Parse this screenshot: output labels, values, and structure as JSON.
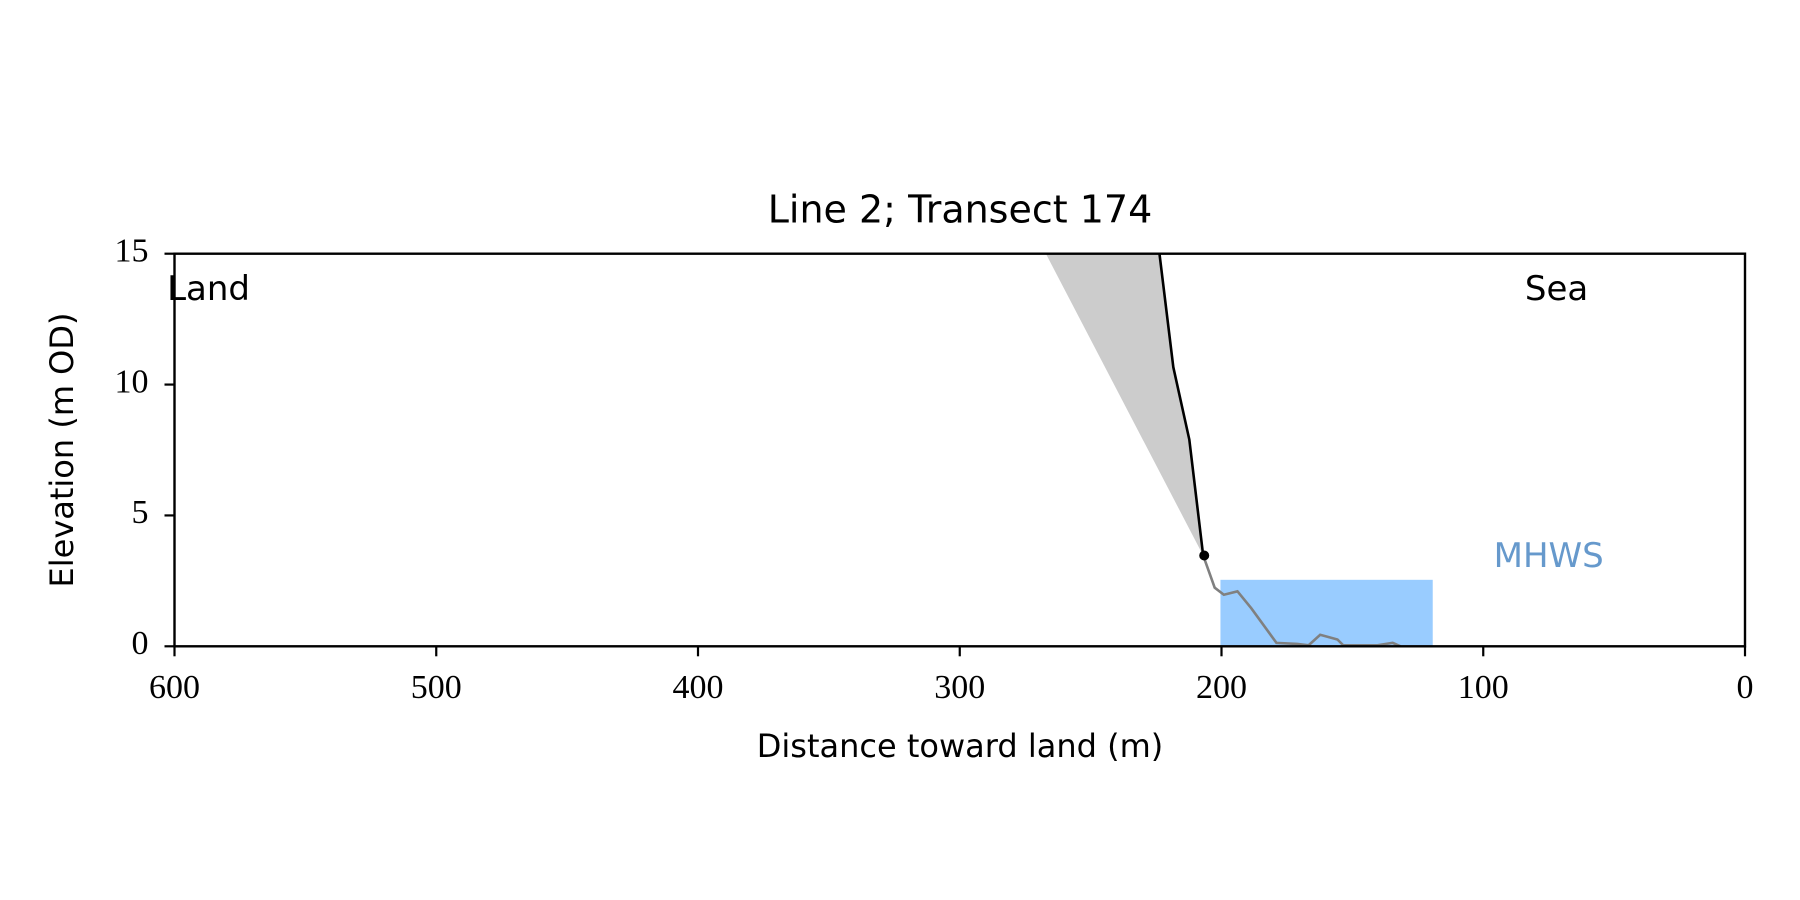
{
  "chart_data": {
    "type": "line",
    "title": "Line 2; Transect 174",
    "xlabel": "Distance toward land (m)",
    "ylabel": "Elevation (m OD)",
    "xlim": [
      600,
      0
    ],
    "ylim": [
      0,
      15
    ],
    "xticks": [
      600,
      500,
      400,
      300,
      200,
      100,
      0
    ],
    "yticks": [
      0,
      5,
      10,
      15
    ],
    "series": [
      {
        "color": "#000000",
        "x": [
          223.7,
          218.4,
          212.3,
          207.0
        ],
        "values": [
          15,
          10.66,
          7.9,
          3.47
        ]
      },
      {
        "color": "#808080",
        "x": [
          207.0,
          202.6,
          199.1,
          193.9,
          188.6,
          179.0,
          171.1,
          166.7,
          162.3,
          155.7,
          153.5,
          140.4,
          134.6,
          131.6
        ],
        "values": [
          3.47,
          2.24,
          1.97,
          2.1,
          1.45,
          0.13,
          0.09,
          0.04,
          0.44,
          0.26,
          0.04,
          0.04,
          0.13,
          0
        ]
      }
    ],
    "points": {
      "color": "#000000",
      "x": [
        206.6
      ],
      "values": [
        3.47
      ]
    },
    "shade": {
      "color": "#cccccc",
      "x": [
        267.1,
        223.7,
        218.4,
        212.3,
        207.0
      ],
      "values": [
        15,
        15,
        10.66,
        7.9,
        3.47
      ]
    },
    "mhws": {
      "label": "MHWS",
      "level": 2.54,
      "x": [
        200.4,
        119.3
      ],
      "color": "#99ccff",
      "label_color": "#6699cc",
      "label_x": 75,
      "label_y": 3.4
    },
    "annotations": [
      {
        "text": "Land",
        "x": 587,
        "y": 13.6
      },
      {
        "text": "Sea",
        "x": 72,
        "y": 13.6
      }
    ]
  }
}
